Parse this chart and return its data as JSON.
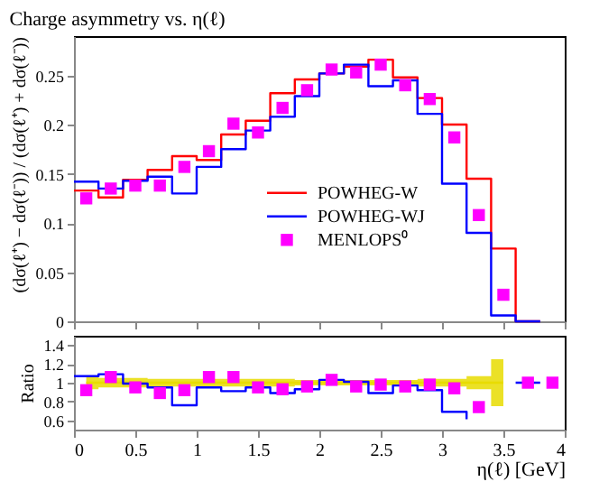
{
  "chart_data": [
    {
      "type": "step",
      "title": "Charge asymmetry vs. η(ℓ)",
      "ylabel": "(dσ(ℓ⁺) − dσ(ℓ⁻)) / (dσ(ℓ⁺) + dσ(ℓ⁻))",
      "xlim": [
        0,
        4
      ],
      "xticks": [
        0,
        0.5,
        1,
        1.5,
        2,
        2.5,
        3,
        3.5,
        4
      ],
      "ylim": [
        0,
        0.29
      ],
      "yticks": [
        0,
        0.05,
        0.1,
        0.15,
        0.2,
        0.25
      ],
      "tick_labels": "y",
      "grid": false,
      "legend": "right",
      "series": [
        {
          "name": "POWHEG-W",
          "color": "#ff0000",
          "x": [
            0,
            0.2,
            0.4,
            0.6,
            0.8,
            1.0,
            1.2,
            1.4,
            1.6,
            1.8,
            2.0,
            2.2,
            2.4,
            2.6,
            2.8,
            3.0,
            3.2,
            3.4,
            3.6,
            3.8
          ],
          "values": [
            0.133,
            0.126,
            0.144,
            0.154,
            0.168,
            0.164,
            0.19,
            0.204,
            0.232,
            0.246,
            0.252,
            0.259,
            0.266,
            0.248,
            0.227,
            0.2,
            0.145,
            0.074,
            0,
            0
          ]
        },
        {
          "name": "POWHEG-WJ",
          "color": "#0000ff",
          "x": [
            0,
            0.2,
            0.4,
            0.6,
            0.8,
            1.0,
            1.2,
            1.4,
            1.6,
            1.8,
            2.0,
            2.2,
            2.4,
            2.6,
            2.8,
            3.0,
            3.2,
            3.4,
            3.6,
            3.8
          ],
          "values": [
            0.142,
            0.135,
            0.143,
            0.147,
            0.13,
            0.157,
            0.175,
            0.194,
            0.208,
            0.229,
            0.252,
            0.261,
            0.239,
            0.245,
            0.211,
            0.14,
            0.09,
            0.006,
            0,
            0
          ]
        },
        {
          "name": "MENLOPS⁰",
          "type": "scatter",
          "marker": "square",
          "color": "#ff00ff",
          "x": [
            0.1,
            0.3,
            0.5,
            0.7,
            0.9,
            1.1,
            1.3,
            1.5,
            1.7,
            1.9,
            2.1,
            2.3,
            2.5,
            2.7,
            2.9,
            3.1,
            3.3,
            3.5
          ],
          "values": [
            0.125,
            0.135,
            0.138,
            0.138,
            0.157,
            0.173,
            0.201,
            0.192,
            0.217,
            0.235,
            0.256,
            0.253,
            0.261,
            0.24,
            0.226,
            0.187,
            0.108,
            0.027
          ]
        }
      ]
    },
    {
      "type": "step",
      "ylabel": "Ratio",
      "xlabel": "η(ℓ) [GeV]",
      "xlim": [
        0,
        4
      ],
      "xticks": [
        0,
        0.5,
        1,
        1.5,
        2,
        2.5,
        3,
        3.5,
        4
      ],
      "ylim": [
        0.5,
        1.5
      ],
      "yticks": [
        0.6,
        0.8,
        1,
        1.2,
        1.4
      ],
      "grid": false,
      "series": [
        {
          "color": "#e8dc00",
          "x": [
            0.1,
            0.3,
            0.5,
            0.7,
            0.9,
            1.1,
            1.3,
            1.5,
            1.7,
            1.9,
            2.1,
            2.3,
            2.5,
            2.7,
            2.9,
            3.1,
            3.3,
            3.5
          ],
          "values": [
            1,
            1,
            1,
            1,
            1,
            1,
            1,
            1,
            1,
            1,
            1,
            1,
            1,
            1,
            1,
            1,
            1,
            1
          ],
          "lower": [
            0.93,
            0.95,
            0.95,
            0.96,
            0.96,
            0.96,
            0.96,
            0.96,
            0.96,
            0.97,
            0.97,
            0.97,
            0.97,
            0.97,
            0.96,
            0.96,
            0.93,
            0.75
          ],
          "upper": [
            1.06,
            1.05,
            1.05,
            1.04,
            1.04,
            1.04,
            1.04,
            1.04,
            1.04,
            1.03,
            1.03,
            1.03,
            1.03,
            1.03,
            1.04,
            1.04,
            1.07,
            1.25
          ]
        },
        {
          "color": "#0000ff",
          "x": [
            0,
            0.2,
            0.4,
            0.6,
            0.8,
            1.0,
            1.2,
            1.4,
            1.6,
            1.8,
            2.0,
            2.2,
            2.4,
            2.6,
            2.8,
            3.0,
            3.2,
            3.4,
            3.6,
            3.8
          ],
          "values": [
            1.07,
            1.09,
            0.99,
            0.95,
            0.76,
            0.95,
            0.91,
            0.95,
            0.89,
            0.93,
            1.03,
            1.01,
            0.89,
            0.97,
            0.92,
            0.69,
            0.61,
            null,
            1.0,
            1.0
          ]
        },
        {
          "type": "scatter",
          "marker": "square",
          "color": "#ff00ff",
          "x": [
            0.1,
            0.3,
            0.5,
            0.7,
            0.9,
            1.1,
            1.3,
            1.5,
            1.7,
            1.9,
            2.1,
            2.3,
            2.5,
            2.7,
            2.9,
            3.1,
            3.3,
            3.7,
            3.9
          ],
          "values": [
            0.92,
            1.06,
            0.95,
            0.89,
            0.92,
            1.06,
            1.06,
            0.95,
            0.93,
            0.96,
            1.03,
            0.96,
            0.98,
            0.96,
            0.98,
            0.94,
            0.74,
            1.0,
            1.0
          ]
        }
      ]
    }
  ]
}
